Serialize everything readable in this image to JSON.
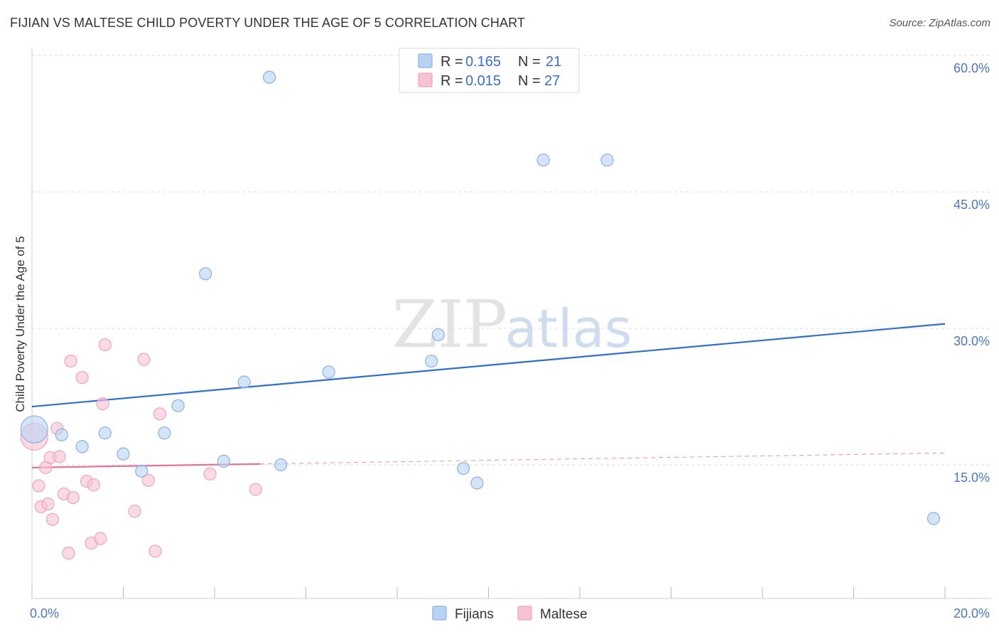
{
  "header": {
    "title": "FIJIAN VS MALTESE CHILD POVERTY UNDER THE AGE OF 5 CORRELATION CHART",
    "source": "Source: ZipAtlas.com"
  },
  "watermark": {
    "zip": "ZIP",
    "atlas": "atlas"
  },
  "colors": {
    "fijians_fill": "#b9d3f3",
    "fijians_stroke": "#8ab0e2",
    "fijians_line": "#2f6fd0",
    "maltese_fill": "#f6c3d3",
    "maltese_stroke": "#eea3bb",
    "maltese_line": "#e8739a",
    "tick_text": "#4a78c2",
    "grid": "#dddddd"
  },
  "chart_data": {
    "type": "scatter",
    "title": "FIJIAN VS MALTESE CHILD POVERTY UNDER THE AGE OF 5 CORRELATION CHART",
    "xlabel": "",
    "ylabel": "Child Poverty Under the Age of 5",
    "xlim": [
      0,
      20
    ],
    "ylim": [
      0,
      62
    ],
    "x_tick_labels": [
      {
        "value": 0,
        "label": "0.0%"
      },
      {
        "value": 20,
        "label": "20.0%"
      }
    ],
    "y_tick_labels": [
      {
        "value": 15,
        "label": "15.0%"
      },
      {
        "value": 30,
        "label": "30.0%"
      },
      {
        "value": 45,
        "label": "45.0%"
      },
      {
        "value": 60,
        "label": "60.0%"
      }
    ],
    "legend": [
      {
        "series": "Fijians",
        "r_label": "R =",
        "r_value": "0.165",
        "n_label": "N =",
        "n_value": "21"
      },
      {
        "series": "Maltese",
        "r_label": "R =",
        "r_value": "0.015",
        "n_label": "N =",
        "n_value": "27"
      }
    ],
    "series": [
      {
        "name": "Fijians",
        "points": [
          {
            "x": 0.05,
            "y": 18.9,
            "big": true
          },
          {
            "x": 0.65,
            "y": 18.3
          },
          {
            "x": 1.1,
            "y": 17.0
          },
          {
            "x": 1.6,
            "y": 18.5
          },
          {
            "x": 2.0,
            "y": 16.2
          },
          {
            "x": 2.4,
            "y": 14.3
          },
          {
            "x": 2.9,
            "y": 18.5
          },
          {
            "x": 3.2,
            "y": 21.5
          },
          {
            "x": 3.8,
            "y": 36.0
          },
          {
            "x": 4.2,
            "y": 15.4
          },
          {
            "x": 4.65,
            "y": 24.1
          },
          {
            "x": 5.2,
            "y": 57.6
          },
          {
            "x": 5.45,
            "y": 15.0
          },
          {
            "x": 6.5,
            "y": 25.2
          },
          {
            "x": 8.75,
            "y": 26.4
          },
          {
            "x": 8.9,
            "y": 29.3
          },
          {
            "x": 9.45,
            "y": 14.6
          },
          {
            "x": 9.75,
            "y": 13.0
          },
          {
            "x": 11.2,
            "y": 48.5
          },
          {
            "x": 12.6,
            "y": 48.5
          },
          {
            "x": 19.75,
            "y": 9.1
          }
        ],
        "trend": {
          "x0": 0,
          "y0": 21.4,
          "x1": 20,
          "y1": 30.5
        }
      },
      {
        "name": "Maltese",
        "points": [
          {
            "x": 0.05,
            "y": 18.1,
            "big": true
          },
          {
            "x": 0.15,
            "y": 12.7
          },
          {
            "x": 0.2,
            "y": 10.4
          },
          {
            "x": 0.3,
            "y": 14.7
          },
          {
            "x": 0.35,
            "y": 10.7
          },
          {
            "x": 0.4,
            "y": 15.8
          },
          {
            "x": 0.45,
            "y": 9.0
          },
          {
            "x": 0.55,
            "y": 19.0
          },
          {
            "x": 0.6,
            "y": 15.9
          },
          {
            "x": 0.7,
            "y": 11.8
          },
          {
            "x": 0.8,
            "y": 5.3
          },
          {
            "x": 0.85,
            "y": 26.4
          },
          {
            "x": 0.9,
            "y": 11.4
          },
          {
            "x": 1.1,
            "y": 24.6
          },
          {
            "x": 1.2,
            "y": 13.2
          },
          {
            "x": 1.3,
            "y": 6.4
          },
          {
            "x": 1.35,
            "y": 12.8
          },
          {
            "x": 1.5,
            "y": 6.9
          },
          {
            "x": 1.55,
            "y": 21.7
          },
          {
            "x": 1.6,
            "y": 28.2
          },
          {
            "x": 2.25,
            "y": 9.9
          },
          {
            "x": 2.45,
            "y": 26.6
          },
          {
            "x": 2.55,
            "y": 13.3
          },
          {
            "x": 2.7,
            "y": 5.5
          },
          {
            "x": 2.8,
            "y": 20.6
          },
          {
            "x": 3.9,
            "y": 14.0
          },
          {
            "x": 4.9,
            "y": 12.3
          }
        ],
        "trend": {
          "x0": 0,
          "y0": 14.7,
          "x1": 5.0,
          "y1": 15.1
        },
        "trend_dashed": {
          "x0": 5.0,
          "y0": 15.1,
          "x1": 20,
          "y1": 16.3
        }
      }
    ]
  },
  "bottom_legend": [
    {
      "label": "Fijians"
    },
    {
      "label": "Maltese"
    }
  ]
}
